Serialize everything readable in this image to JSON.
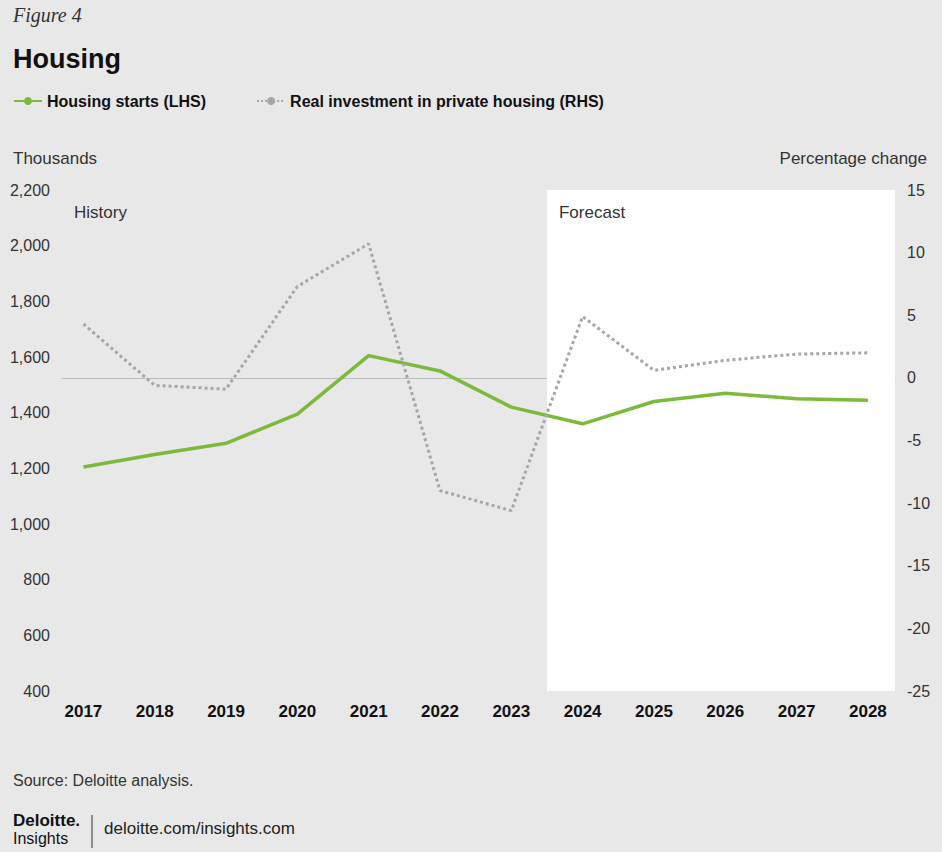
{
  "figure_label": "Figure 4",
  "source": "Source: Deloitte analysis.",
  "footer": {
    "brand": "Deloitte.",
    "sub_brand": "Insights",
    "url": "deloitte.com/insights.com"
  },
  "chart_data": {
    "type": "line",
    "title": "Housing",
    "y_label": "Thousands",
    "y2_label": "Percentage change",
    "x": [
      2017,
      2018,
      2019,
      2020,
      2021,
      2022,
      2023,
      2024,
      2025,
      2026,
      2027,
      2028
    ],
    "xlim": [
      2016.7,
      2028.38
    ],
    "xticks": [
      2017,
      2018,
      2019,
      2020,
      2021,
      2022,
      2023,
      2024,
      2025,
      2026,
      2027,
      2028
    ],
    "ylim": [
      400,
      2200
    ],
    "yticks": [
      400,
      600,
      800,
      {
        "value": 1000,
        "label": "1,000"
      },
      {
        "value": 1200,
        "label": "1,200"
      },
      {
        "value": 1400,
        "label": "1,400"
      },
      {
        "value": 1600,
        "label": "1,600"
      },
      {
        "value": 1800,
        "label": "1,800"
      },
      {
        "value": 2000,
        "label": "2,000"
      },
      {
        "value": 2200,
        "label": "2,200"
      }
    ],
    "y2lim": [
      -25,
      15
    ],
    "y2ticks": [
      -25,
      -20,
      -15,
      -10,
      -5,
      0,
      5,
      10,
      15
    ],
    "grid": false,
    "legend": "top-left",
    "series": [
      {
        "name": "Housing starts (LHS)",
        "color": "#7cba3c",
        "line_style": "solid",
        "values": [
          1205,
          1250,
          1290,
          1395,
          1605,
          1550,
          1420,
          1360,
          1440,
          1470,
          1450,
          1445
        ]
      },
      {
        "name": "Real investment in private housing (RHS)",
        "color": "#a6a6a6",
        "line_style": "dotted",
        "axis": "y2",
        "values": [
          4.3,
          -0.6,
          -0.9,
          7.3,
          10.7,
          -9.0,
          -10.6,
          4.9,
          0.6,
          1.4,
          1.9,
          2.0
        ]
      }
    ],
    "annotations": [
      {
        "text": "History",
        "from": 2016.7,
        "to": 2023.5
      },
      {
        "text": "Forecast",
        "from": 2023.5,
        "to": 2028.38,
        "color": "#ffffff"
      }
    ]
  }
}
